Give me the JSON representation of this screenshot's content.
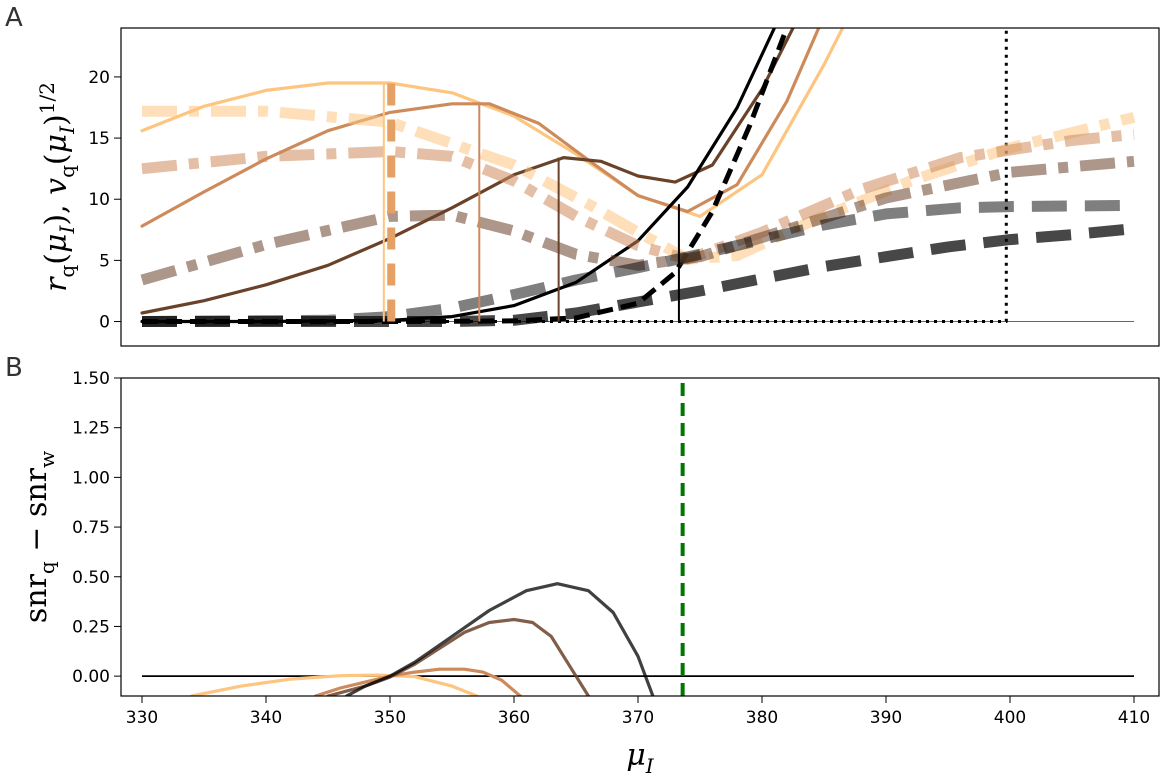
{
  "chart_data": [
    {
      "panel_label": "A",
      "type": "line",
      "ylabel": "r_q(μ_I), v_q(μ_I)^1/2",
      "xlim": [
        330,
        410
      ],
      "ylim": [
        -2,
        24
      ],
      "yticks": [
        0,
        5,
        10,
        15,
        20
      ],
      "xticks_visible": false,
      "series": [
        {
          "style": "solid",
          "color": "#fdc57f",
          "points": [
            [
              330,
              15.6
            ],
            [
              335,
              17.6
            ],
            [
              340,
              18.9
            ],
            [
              345,
              19.5
            ],
            [
              350,
              19.5
            ],
            [
              355,
              18.7
            ],
            [
              360,
              16.8
            ],
            [
              365,
              13.7
            ],
            [
              370,
              10.3
            ],
            [
              375,
              8.6
            ],
            [
              380,
              12
            ],
            [
              385,
              21
            ],
            [
              387,
              25
            ]
          ]
        },
        {
          "style": "solid",
          "color": "#cd8a5b",
          "points": [
            [
              330,
              7.8
            ],
            [
              335,
              10.6
            ],
            [
              340,
              13.3
            ],
            [
              345,
              15.6
            ],
            [
              350,
              17.1
            ],
            [
              355,
              17.8
            ],
            [
              358,
              17.8
            ],
            [
              362,
              16.2
            ],
            [
              366,
              13.2
            ],
            [
              370,
              10.3
            ],
            [
              374,
              9
            ],
            [
              378,
              11.2
            ],
            [
              382,
              18
            ],
            [
              385,
              25
            ]
          ]
        },
        {
          "style": "solid",
          "color": "#6a4229",
          "points": [
            [
              330,
              0.7
            ],
            [
              335,
              1.7
            ],
            [
              340,
              3.0
            ],
            [
              345,
              4.6
            ],
            [
              350,
              6.8
            ],
            [
              355,
              9.3
            ],
            [
              360,
              12.0
            ],
            [
              364,
              13.4
            ],
            [
              367,
              13.1
            ],
            [
              370,
              11.9
            ],
            [
              373,
              11.4
            ],
            [
              376,
              12.8
            ],
            [
              380,
              19
            ],
            [
              383,
              25
            ]
          ]
        },
        {
          "style": "solid",
          "color": "#000000",
          "points": [
            [
              330,
              0
            ],
            [
              340,
              0
            ],
            [
              345,
              0.05
            ],
            [
              350,
              0.1
            ],
            [
              355,
              0.4
            ],
            [
              360,
              1.3
            ],
            [
              365,
              3.2
            ],
            [
              370,
              6.6
            ],
            [
              374,
              11
            ],
            [
              378,
              17.5
            ],
            [
              381,
              24
            ]
          ]
        },
        {
          "style": "dashed",
          "color": "#000000",
          "width": 5,
          "points": [
            [
              330,
              0
            ],
            [
              350,
              0
            ],
            [
              360,
              0.05
            ],
            [
              365,
              0.3
            ],
            [
              370,
              1.5
            ],
            [
              373,
              4
            ],
            [
              376,
              9
            ],
            [
              379,
              16
            ],
            [
              382,
              24
            ]
          ]
        },
        {
          "style": "dotted",
          "color": "#000000",
          "width": 3,
          "points": [
            [
              330,
              0
            ],
            [
              399.7,
              0
            ],
            [
              399.7,
              24
            ]
          ]
        },
        {
          "style": "dashdot",
          "color": "#fdc57f",
          "alpha": 0.55,
          "width": 11,
          "points": [
            [
              330,
              17.2
            ],
            [
              340,
              17.2
            ],
            [
              350,
              16.3
            ],
            [
              360,
              12.8
            ],
            [
              366,
              9.6
            ],
            [
              370,
              7.3
            ],
            [
              374,
              5.1
            ],
            [
              378,
              5.4
            ],
            [
              384,
              8.2
            ],
            [
              392,
              11.5
            ],
            [
              400,
              14.2
            ],
            [
              410,
              16.7
            ]
          ]
        },
        {
          "style": "dashdot",
          "color": "#cd8a5b",
          "alpha": 0.55,
          "width": 11,
          "points": [
            [
              330,
              12.5
            ],
            [
              340,
              13.5
            ],
            [
              350,
              13.9
            ],
            [
              355,
              13.5
            ],
            [
              360,
              11.5
            ],
            [
              365,
              8.6
            ],
            [
              370,
              6.2
            ],
            [
              374,
              5.1
            ],
            [
              380,
              7.3
            ],
            [
              388,
              10.8
            ],
            [
              396,
              13.4
            ],
            [
              405,
              14.8
            ],
            [
              410,
              15.3
            ]
          ]
        },
        {
          "style": "dashdot",
          "color": "#6a4229",
          "alpha": 0.55,
          "width": 11,
          "points": [
            [
              330,
              3.4
            ],
            [
              340,
              6.3
            ],
            [
              350,
              8.6
            ],
            [
              355,
              8.7
            ],
            [
              360,
              7.4
            ],
            [
              365,
              5.5
            ],
            [
              370,
              4.6
            ],
            [
              375,
              5.3
            ],
            [
              382,
              7.5
            ],
            [
              390,
              10.1
            ],
            [
              400,
              12.2
            ],
            [
              410,
              13.1
            ]
          ]
        },
        {
          "style": "dashed",
          "color": "#000000",
          "alpha": 0.5,
          "width": 11,
          "points": [
            [
              330,
              0
            ],
            [
              345,
              0.1
            ],
            [
              350,
              0.4
            ],
            [
              355,
              1.1
            ],
            [
              360,
              2.2
            ],
            [
              365,
              3.4
            ],
            [
              370,
              4.4
            ],
            [
              375,
              5.5
            ],
            [
              380,
              6.7
            ],
            [
              385,
              7.9
            ],
            [
              390,
              8.8
            ],
            [
              396,
              9.3
            ],
            [
              400,
              9.4
            ],
            [
              410,
              9.5
            ]
          ]
        },
        {
          "style": "dashed",
          "color": "#000000",
          "alpha": 0.72,
          "width": 11,
          "points": [
            [
              330,
              0
            ],
            [
              355,
              0
            ],
            [
              360,
              0.1
            ],
            [
              365,
              0.7
            ],
            [
              370,
              1.6
            ],
            [
              375,
              2.5
            ],
            [
              380,
              3.5
            ],
            [
              385,
              4.5
            ],
            [
              390,
              5.3
            ],
            [
              395,
              6.1
            ],
            [
              400,
              6.7
            ],
            [
              405,
              7.1
            ],
            [
              410,
              7.6
            ]
          ]
        }
      ],
      "vlines": [
        {
          "x": 349.5,
          "y1": 0,
          "y2": 19.5,
          "color": "#fdc57f",
          "width": 2
        },
        {
          "x": 357.2,
          "y1": 0,
          "y2": 17.9,
          "color": "#cd8a5b",
          "width": 2
        },
        {
          "x": 363.6,
          "y1": 0,
          "y2": 13.4,
          "color": "#6a4229",
          "width": 2
        },
        {
          "x": 373.3,
          "y1": 0,
          "y2": 9.6,
          "color": "#000000",
          "width": 2
        },
        {
          "x": 350.1,
          "y1": 0,
          "y2": 19.5,
          "color": "#e5a066",
          "width": 8,
          "dash": "22 14"
        }
      ],
      "hline": {
        "y": 0,
        "color": "#666666"
      }
    },
    {
      "panel_label": "B",
      "type": "line",
      "xlabel": "μ_I",
      "ylabel": "snr_q − snr_w",
      "xlim": [
        330,
        410
      ],
      "ylim": [
        -0.1,
        1.5
      ],
      "xticks": [
        330,
        340,
        350,
        360,
        370,
        380,
        390,
        400,
        410
      ],
      "yticks": [
        0.0,
        0.25,
        0.5,
        0.75,
        1.0,
        1.25,
        1.5
      ],
      "ytick_labels": [
        "0.00",
        "0.25",
        "0.50",
        "0.75",
        "1.00",
        "1.25",
        "1.50"
      ],
      "series": [
        {
          "style": "solid",
          "color": "#fdc57f",
          "points": [
            [
              334,
              -0.1
            ],
            [
              338,
              -0.05
            ],
            [
              342,
              -0.015
            ],
            [
              346,
              0.002
            ],
            [
              349,
              0.005
            ],
            [
              352,
              -0.003
            ],
            [
              355,
              -0.05
            ],
            [
              357,
              -0.1
            ]
          ]
        },
        {
          "style": "solid",
          "color": "#cd8a5b",
          "points": [
            [
              344,
              -0.1
            ],
            [
              346,
              -0.06
            ],
            [
              348,
              -0.03
            ],
            [
              350,
              0.0
            ],
            [
              352,
              0.02
            ],
            [
              354,
              0.035
            ],
            [
              356,
              0.035
            ],
            [
              357.5,
              0.02
            ],
            [
              359,
              -0.02
            ],
            [
              360.5,
              -0.1
            ]
          ]
        },
        {
          "style": "solid",
          "color": "#6a4229",
          "alpha": 0.85,
          "points": [
            [
              345,
              -0.1
            ],
            [
              348,
              -0.05
            ],
            [
              350,
              -0.005
            ],
            [
              352,
              0.06
            ],
            [
              354,
              0.14
            ],
            [
              356,
              0.22
            ],
            [
              358,
              0.27
            ],
            [
              360,
              0.285
            ],
            [
              361.5,
              0.27
            ],
            [
              363,
              0.2
            ],
            [
              364.5,
              0.05
            ],
            [
              366,
              -0.1
            ]
          ]
        },
        {
          "style": "solid",
          "color": "#000000",
          "alpha": 0.75,
          "points": [
            [
              346.5,
              -0.1
            ],
            [
              348,
              -0.05
            ],
            [
              350,
              0.0
            ],
            [
              352,
              0.07
            ],
            [
              355,
              0.2
            ],
            [
              358,
              0.33
            ],
            [
              361,
              0.43
            ],
            [
              363.5,
              0.465
            ],
            [
              366,
              0.43
            ],
            [
              368,
              0.32
            ],
            [
              370,
              0.1
            ],
            [
              371.2,
              -0.1
            ]
          ]
        }
      ],
      "vlines": [
        {
          "x": 373.6,
          "y1": -0.1,
          "y2": 1.5,
          "color": "#007700",
          "width": 4,
          "dash": "13 7"
        }
      ],
      "hline": {
        "y": 0,
        "color": "#000000"
      }
    }
  ]
}
